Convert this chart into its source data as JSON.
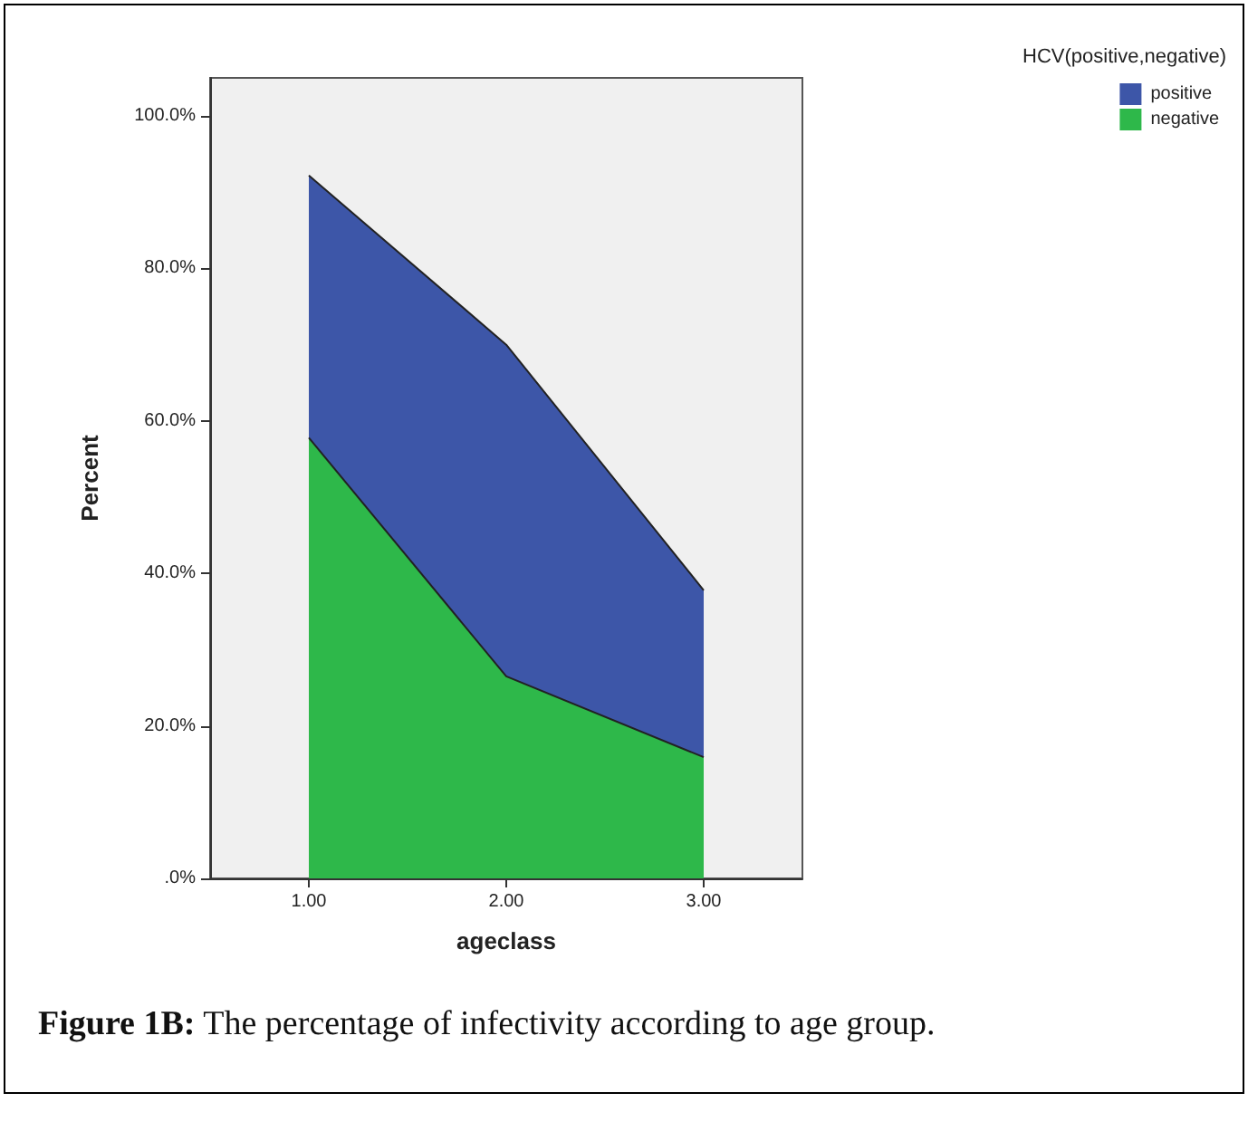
{
  "chart_data": {
    "type": "area",
    "xlabel": "ageclass",
    "ylabel": "Percent",
    "legend_title": "HCV(positive,negative)",
    "categories": [
      "1.00",
      "2.00",
      "3.00"
    ],
    "stacked": true,
    "series": [
      {
        "name": "negative",
        "color": "#2eb84a",
        "values": [
          57.8,
          26.5,
          15.9
        ]
      },
      {
        "name": "positive",
        "color": "#3d56a8",
        "values": [
          34.4,
          43.5,
          21.9
        ]
      }
    ],
    "ylim": [
      0,
      105
    ],
    "yticks": [
      {
        "value": 0,
        "label": ".0%"
      },
      {
        "value": 20,
        "label": "20.0%"
      },
      {
        "value": 40,
        "label": "40.0%"
      },
      {
        "value": 60,
        "label": "60.0%"
      },
      {
        "value": 80,
        "label": "80.0%"
      },
      {
        "value": 100,
        "label": "100.0%"
      }
    ],
    "grid": false,
    "legend": "top right",
    "annotations": [
      "Figure 1B: The percentage of infectivity according to age group."
    ]
  }
}
